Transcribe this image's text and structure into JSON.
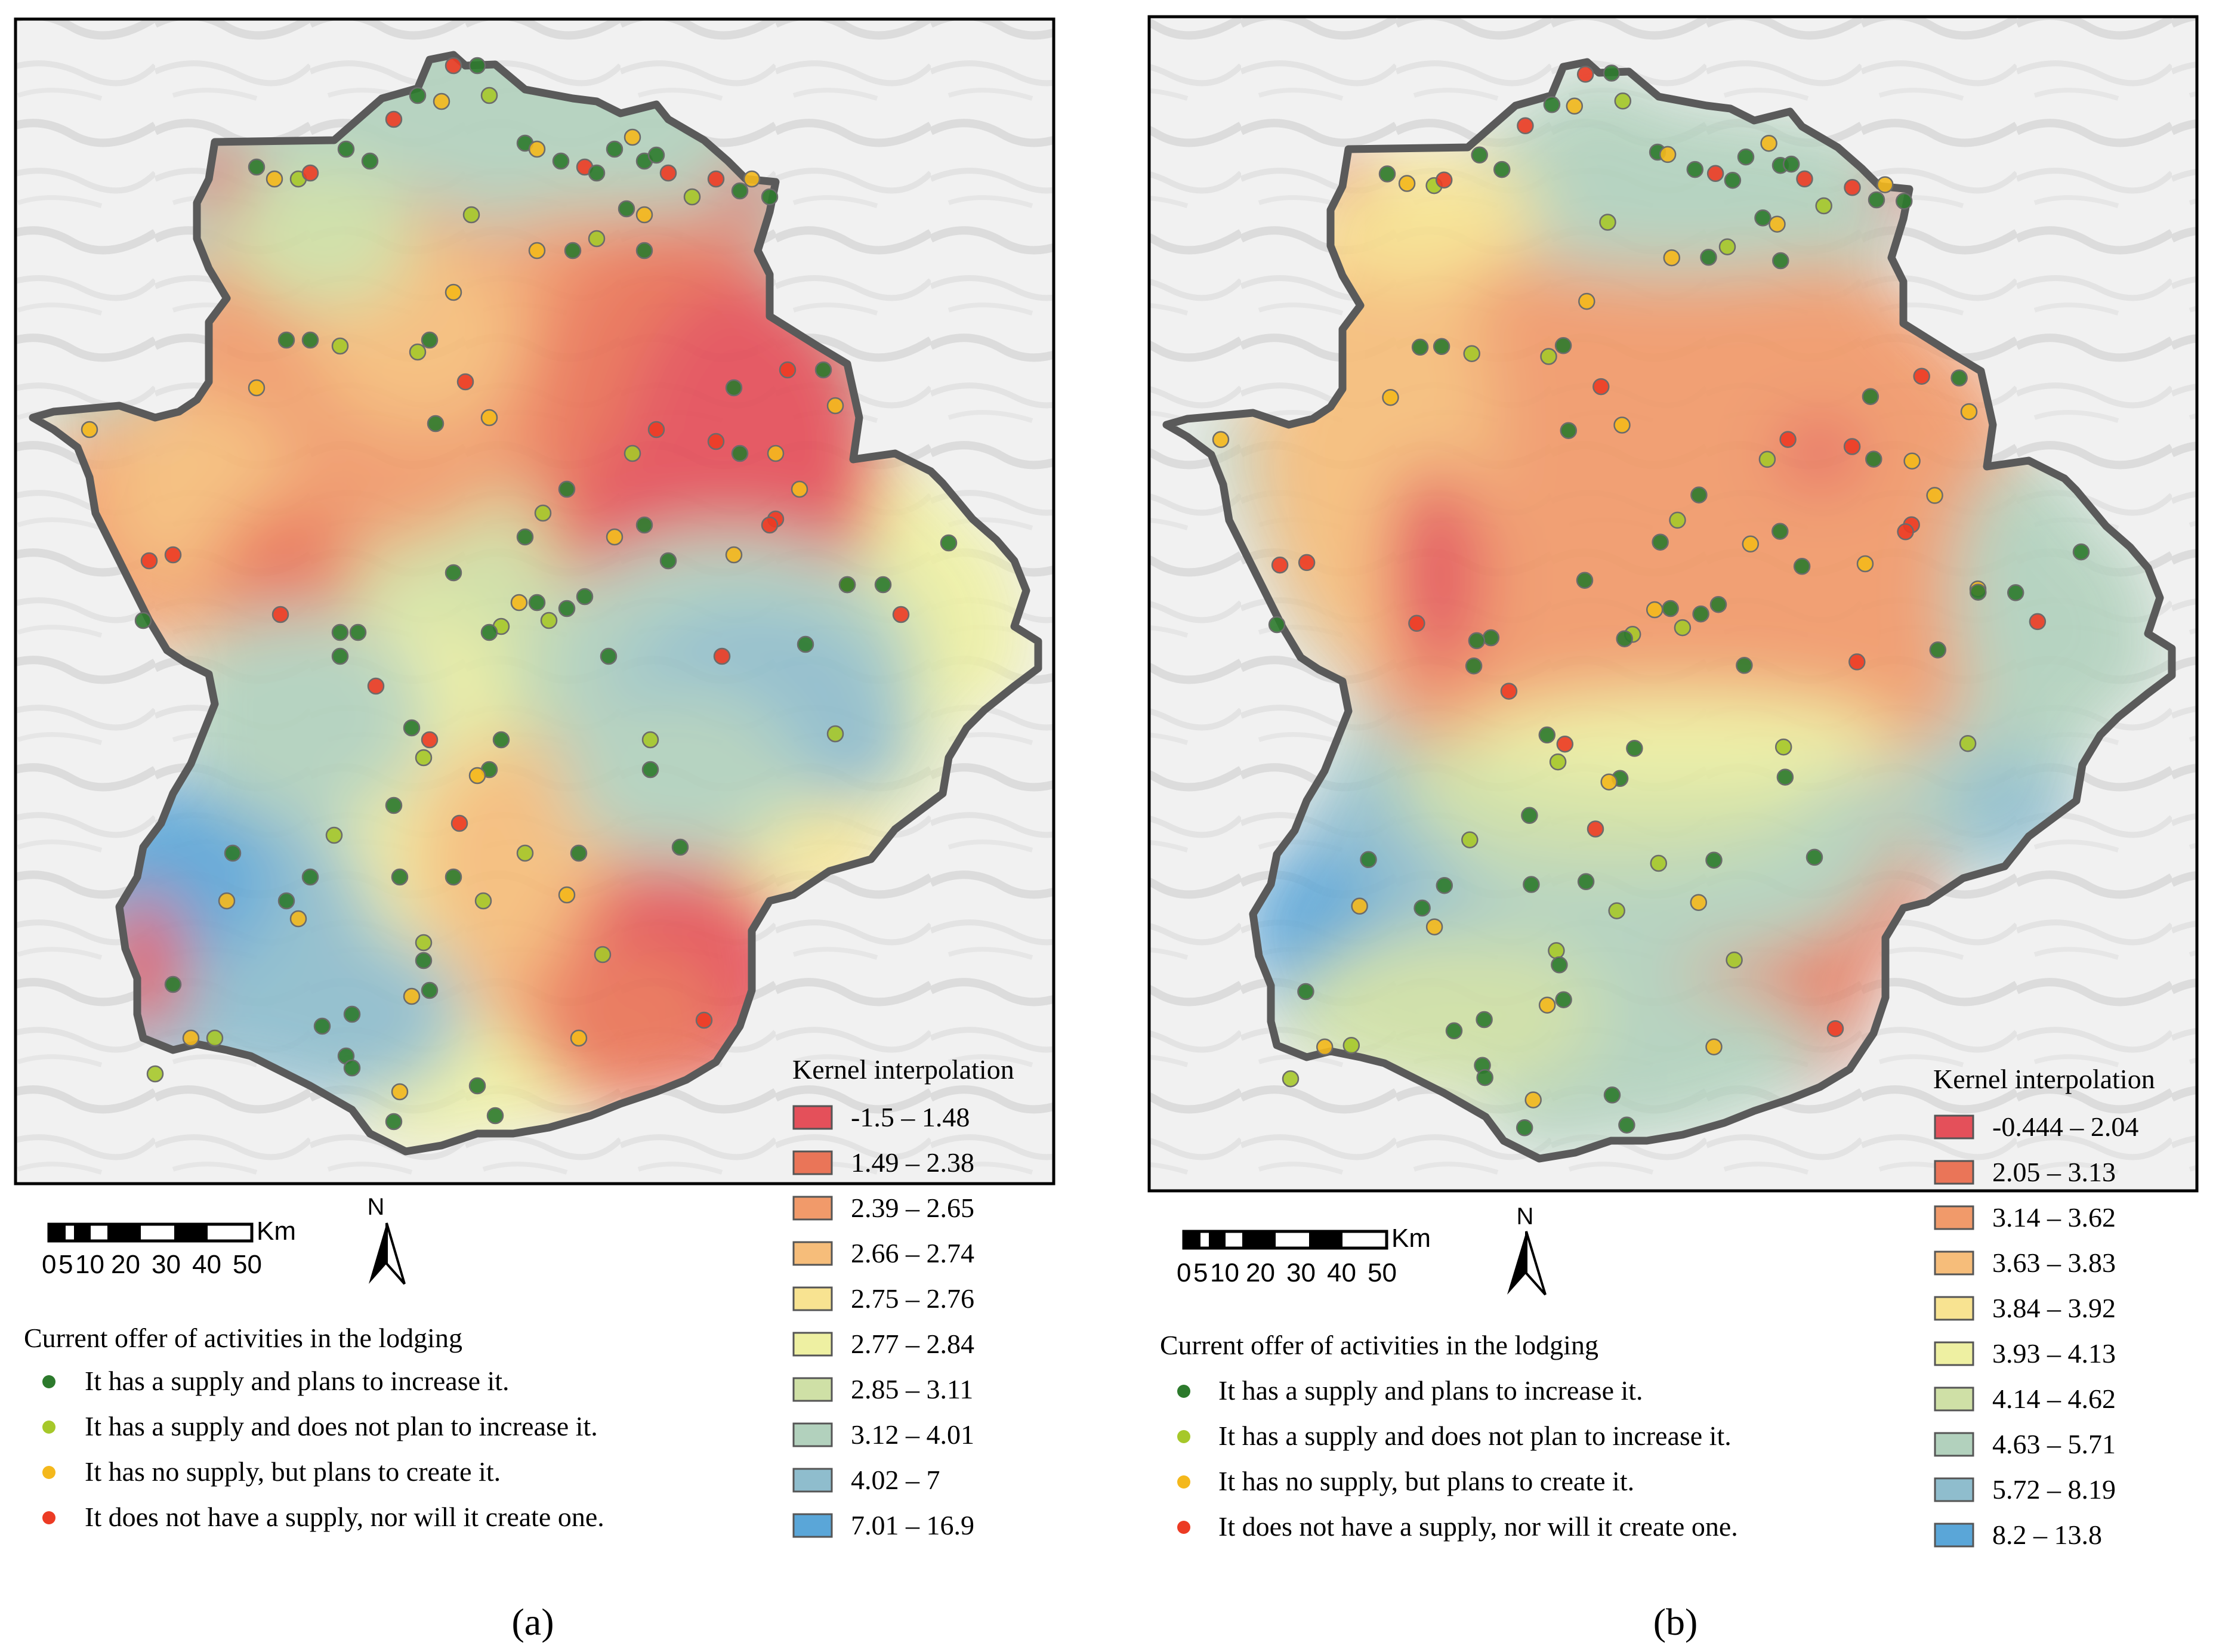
{
  "panels": [
    {
      "id": "a",
      "caption": "(a)",
      "legend_title": "Kernel interpolation",
      "classes": [
        {
          "label": "-1.5 – 1.48",
          "color": "#e4505a"
        },
        {
          "label": "1.49 – 2.38",
          "color": "#ea7558"
        },
        {
          "label": "2.39 – 2.65",
          "color": "#f19a6a"
        },
        {
          "label": "2.66 – 2.74",
          "color": "#f6bd7a"
        },
        {
          "label": "2.75 – 2.76",
          "color": "#f8e391"
        },
        {
          "label": "2.77 – 2.84",
          "color": "#eef0a2"
        },
        {
          "label": "2.85 – 3.11",
          "color": "#cfe0a6"
        },
        {
          "label": "3.12 – 4.01",
          "color": "#b2d1bd"
        },
        {
          "label": "4.02 – 7",
          "color": "#8fbdcd"
        },
        {
          "label": "7.01 – 16.9",
          "color": "#5aa6d8"
        }
      ]
    },
    {
      "id": "b",
      "caption": "(b)",
      "legend_title": "Kernel interpolation",
      "classes": [
        {
          "label": "-0.444 – 2.04",
          "color": "#e4505a"
        },
        {
          "label": "2.05 – 3.13",
          "color": "#ea7558"
        },
        {
          "label": "3.14 – 3.62",
          "color": "#f19a6a"
        },
        {
          "label": "3.63 – 3.83",
          "color": "#f6bd7a"
        },
        {
          "label": "3.84 – 3.92",
          "color": "#f8e391"
        },
        {
          "label": "3.93 – 4.13",
          "color": "#eef0a2"
        },
        {
          "label": "4.14 – 4.62",
          "color": "#cfe0a6"
        },
        {
          "label": "4.63 – 5.71",
          "color": "#b2d1bd"
        },
        {
          "label": "5.72 – 8.19",
          "color": "#8fbdcd"
        },
        {
          "label": "8.2 – 13.8",
          "color": "#5aa6d8"
        }
      ]
    }
  ],
  "scale_bar": {
    "unit": "Km",
    "ticks": [
      "0",
      "5",
      "10",
      "20",
      "30",
      "40",
      "50"
    ]
  },
  "north_arrow": {
    "label": "N",
    "icon": "north-arrow-icon"
  },
  "points_legend": {
    "title": "Current offer of activities in the lodging",
    "items": [
      {
        "label": "It has a supply and plans to increase it.",
        "color": "#2c7a2c"
      },
      {
        "label": "It has a supply and does not plan to increase it.",
        "color": "#a6c82a"
      },
      {
        "label": "It has no supply, but plans to create it.",
        "color": "#f4b81c"
      },
      {
        "label": "It does not have a supply, nor will it create one.",
        "color": "#ec3b24"
      }
    ]
  }
}
